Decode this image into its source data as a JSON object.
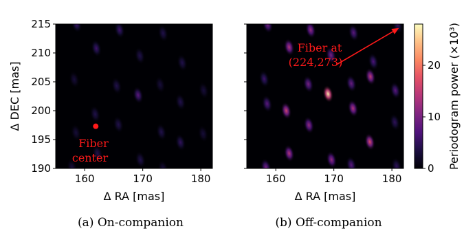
{
  "chart_data": [
    {
      "type": "heatmap",
      "panel": "a",
      "caption": "(a) On-companion",
      "xlabel": "Δ RA [mas]",
      "ylabel": "Δ DEC [mas]",
      "xlim": [
        155,
        182
      ],
      "ylim": [
        190,
        215
      ],
      "xticks": [
        "160",
        "170",
        "180"
      ],
      "yticks": [
        "190",
        "195",
        "200",
        "205",
        "210",
        "215"
      ],
      "peaks": [
        {
          "x": 158.6,
          "y": 215.0,
          "power": 6
        },
        {
          "x": 166.0,
          "y": 214.0,
          "power": 6
        },
        {
          "x": 173.5,
          "y": 213.4,
          "power": 4
        },
        {
          "x": 162.0,
          "y": 210.8,
          "power": 6
        },
        {
          "x": 169.5,
          "y": 209.5,
          "power": 4
        },
        {
          "x": 176.8,
          "y": 208.3,
          "power": 4
        },
        {
          "x": 158.2,
          "y": 205.4,
          "power": 3
        },
        {
          "x": 165.5,
          "y": 204.3,
          "power": 4
        },
        {
          "x": 173.0,
          "y": 204.5,
          "power": 3
        },
        {
          "x": 180.5,
          "y": 203.5,
          "power": 3
        },
        {
          "x": 161.8,
          "y": 199.4,
          "power": 4
        },
        {
          "x": 169.2,
          "y": 202.7,
          "power": 8
        },
        {
          "x": 176.5,
          "y": 201.5,
          "power": 4
        },
        {
          "x": 158.5,
          "y": 196.2,
          "power": 3
        },
        {
          "x": 165.8,
          "y": 197.6,
          "power": 4
        },
        {
          "x": 173.2,
          "y": 196.3,
          "power": 4
        },
        {
          "x": 180.4,
          "y": 196.0,
          "power": 3
        },
        {
          "x": 162.2,
          "y": 192.6,
          "power": 4
        },
        {
          "x": 169.6,
          "y": 191.5,
          "power": 4
        },
        {
          "x": 176.5,
          "y": 194.5,
          "power": 5
        },
        {
          "x": 157.8,
          "y": 190.2,
          "power": 3
        },
        {
          "x": 173.5,
          "y": 190.0,
          "power": 3
        }
      ],
      "marker": {
        "x": 161.9,
        "y": 197.3
      },
      "annotation": {
        "lines": [
          "Fiber",
          "center"
        ]
      }
    },
    {
      "type": "heatmap",
      "panel": "b",
      "caption": "(b) Off-companion",
      "xlabel": "Δ RA [mas]",
      "ylabel": "",
      "xlim": [
        155,
        182
      ],
      "ylim": [
        190,
        215
      ],
      "xticks": [
        "160",
        "170",
        "180"
      ],
      "peaks": [
        {
          "x": 158.6,
          "y": 214.9,
          "power": 10
        },
        {
          "x": 166.0,
          "y": 214.0,
          "power": 12
        },
        {
          "x": 173.4,
          "y": 213.5,
          "power": 8
        },
        {
          "x": 181.0,
          "y": 214.8,
          "power": 5
        },
        {
          "x": 162.3,
          "y": 211.0,
          "power": 14
        },
        {
          "x": 169.5,
          "y": 209.6,
          "power": 10
        },
        {
          "x": 176.8,
          "y": 208.5,
          "power": 7
        },
        {
          "x": 158.0,
          "y": 205.5,
          "power": 6
        },
        {
          "x": 165.6,
          "y": 204.6,
          "power": 10
        },
        {
          "x": 173.0,
          "y": 204.7,
          "power": 9
        },
        {
          "x": 180.6,
          "y": 203.5,
          "power": 8
        },
        {
          "x": 176.3,
          "y": 205.9,
          "power": 15
        },
        {
          "x": 161.8,
          "y": 200.0,
          "power": 16
        },
        {
          "x": 169.0,
          "y": 202.9,
          "power": 27
        },
        {
          "x": 158.5,
          "y": 201.2,
          "power": 8
        },
        {
          "x": 165.7,
          "y": 197.5,
          "power": 12
        },
        {
          "x": 173.3,
          "y": 200.4,
          "power": 14
        },
        {
          "x": 180.5,
          "y": 198.0,
          "power": 5
        },
        {
          "x": 162.3,
          "y": 192.6,
          "power": 14
        },
        {
          "x": 169.6,
          "y": 191.5,
          "power": 12
        },
        {
          "x": 176.2,
          "y": 194.6,
          "power": 17
        },
        {
          "x": 158.3,
          "y": 190.2,
          "power": 10
        },
        {
          "x": 173.0,
          "y": 190.6,
          "power": 8
        },
        {
          "x": 180.8,
          "y": 190.4,
          "power": 5
        }
      ],
      "annotation": {
        "lines": [
          "Fiber at",
          "(224,273)"
        ]
      },
      "arrow": {
        "from": [
          170.5,
          208.0
        ],
        "to": [
          181.2,
          214.3
        ]
      }
    }
  ],
  "colorbar": {
    "label": "Periodogram power (×10³)",
    "range": [
      0,
      28
    ],
    "ticks": [
      "0",
      "10",
      "20"
    ],
    "colormap": "magma"
  }
}
